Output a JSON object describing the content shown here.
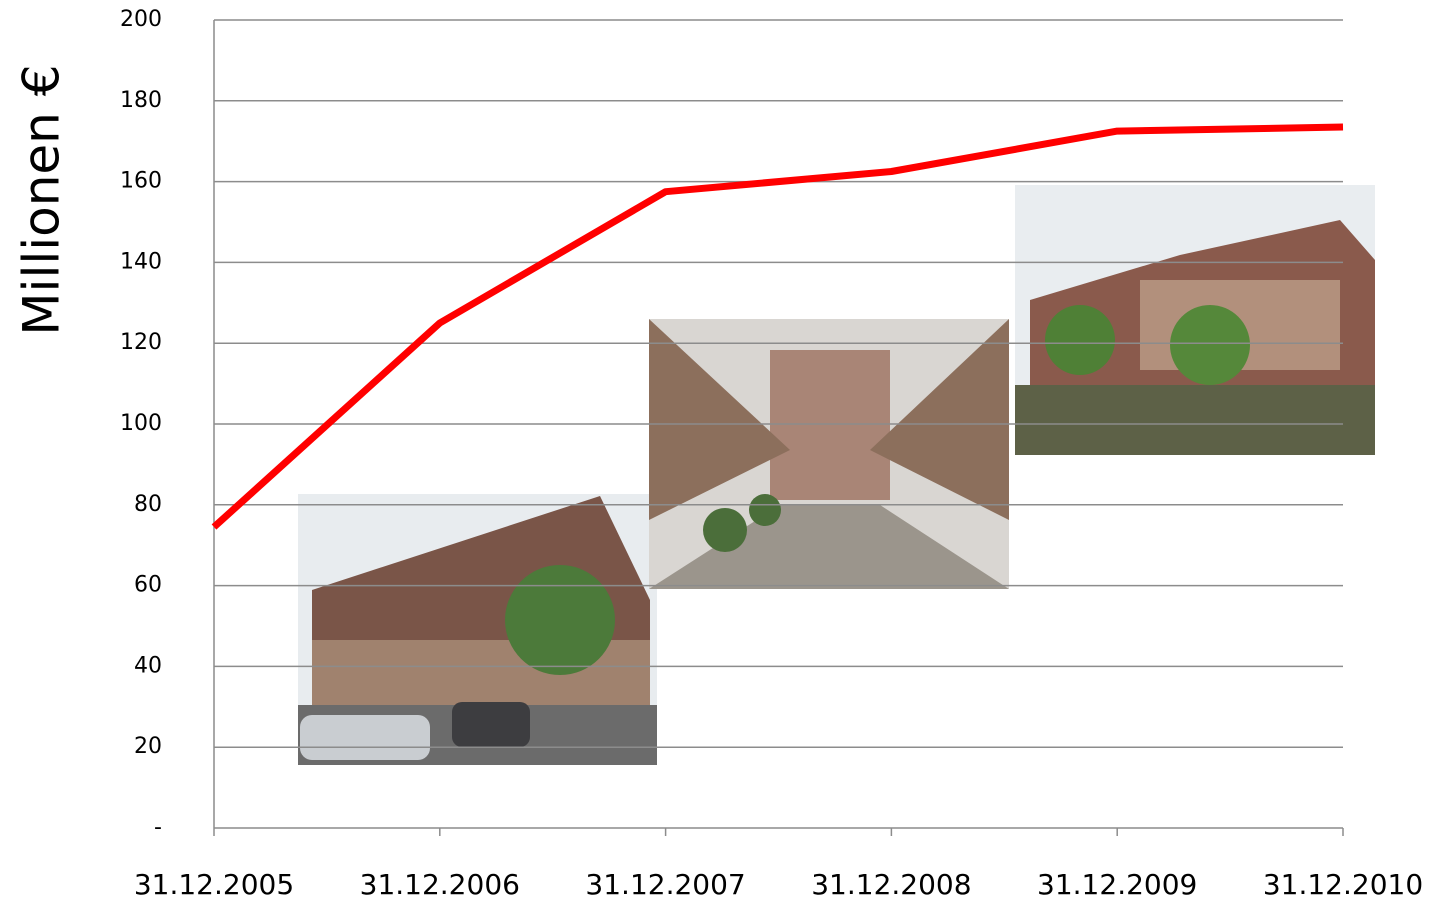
{
  "chart_data": {
    "type": "line",
    "y_label": "Millionen €",
    "categories": [
      "31.12.2005",
      "31.12.2006",
      "31.12.2007",
      "31.12.2008",
      "31.12.2009",
      "31.12.2010"
    ],
    "series": [
      {
        "name": "Millionen €",
        "color": "#ff0000",
        "values": [
          74.5,
          125,
          157.5,
          162.5,
          172.5,
          173.5
        ]
      }
    ],
    "ylim": [
      0,
      200
    ],
    "yticks": [
      {
        "value": 0,
        "label": "-"
      },
      20,
      40,
      60,
      80,
      100,
      120,
      140,
      160,
      180,
      200
    ],
    "grid": true
  }
}
